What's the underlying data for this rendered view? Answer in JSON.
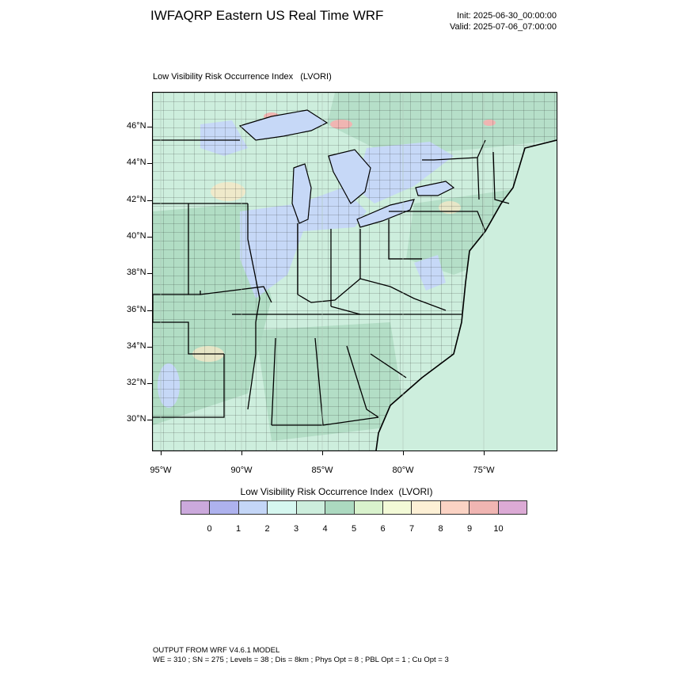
{
  "header": {
    "title": "IWFAQRP Eastern US Real Time WRF",
    "init": "Init: 2025-06-30_00:00:00",
    "valid": "Valid: 2025-07-06_07:00:00"
  },
  "map": {
    "subtitle": "Low Visibility Risk Occurrence Index   (LVORI)",
    "lat_labels": [
      "46°N",
      "44°N",
      "42°N",
      "40°N",
      "38°N",
      "36°N",
      "34°N",
      "32°N",
      "30°N"
    ],
    "lon_labels": [
      "95°W",
      "90°W",
      "85°W",
      "80°W",
      "75°W"
    ],
    "lon_extent": [
      -95.5,
      -70.5
    ],
    "lat_extent": [
      28.5,
      47.8
    ],
    "colors": {
      "background": "#cdeedd",
      "land_dark": "#acd9c0",
      "low_blue": "#c6d8f7",
      "pink": "#f0b5b2",
      "tan": "#f4e7c7",
      "state_lines": "#000000",
      "county_lines": "#1a1a1a"
    }
  },
  "colorbar": {
    "title": "Low Visibility Risk Occurrence Index  (LVORI)",
    "colors": [
      "#cba9dc",
      "#aeb2ee",
      "#c4d6f7",
      "#d6f7f0",
      "#cdeedd",
      "#acd9c0",
      "#d9f2cd",
      "#f3fad7",
      "#fdf0d5",
      "#fbd3c4",
      "#f0b5b2",
      "#dcaad5"
    ],
    "labels": [
      "0",
      "1",
      "2",
      "3",
      "4",
      "5",
      "6",
      "7",
      "8",
      "9",
      "10"
    ]
  },
  "footer": {
    "line1": "OUTPUT FROM WRF V4.6.1 MODEL",
    "line2": "WE = 310 ; SN = 275 ; Levels = 38 ; Dis = 8km ; Phys Opt = 8 ; PBL Opt = 1 ; Cu Opt = 3"
  }
}
